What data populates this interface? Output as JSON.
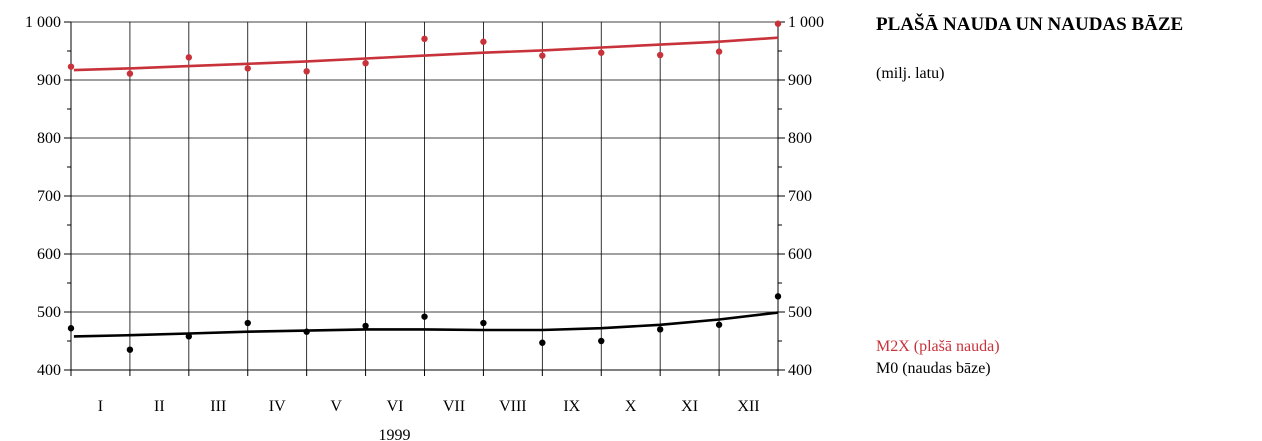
{
  "header": {
    "title": "PLAŠĀ NAUDA UN NAUDAS BĀZE",
    "unit": "(milj. latu)"
  },
  "legend": [
    {
      "label": "M2X (plašā nauda)",
      "color": "#c8323a"
    },
    {
      "label": "M0 (naudas bāze)",
      "color": "#000000"
    }
  ],
  "chart_data": {
    "type": "scatter",
    "title": "PLAŠĀ NAUDA UN NAUDAS BĀZE",
    "subtitle": "(milj. latu)",
    "xlabel": "1999",
    "ylabel": "",
    "categories": [
      "I",
      "II",
      "III",
      "IV",
      "V",
      "VI",
      "VII",
      "VIII",
      "IX",
      "X",
      "XI",
      "XII"
    ],
    "ylim": [
      400,
      1000
    ],
    "yticks": [
      400,
      500,
      600,
      700,
      800,
      900,
      1000
    ],
    "ytick_labels": [
      "400",
      "500",
      "600",
      "700",
      "800",
      "900",
      "1 000"
    ],
    "grid": true,
    "series": [
      {
        "name": "M2X (plašā nauda)",
        "color": "#c8323a",
        "points": [
          {
            "x": 0,
            "y": 923
          },
          {
            "x": 1,
            "y": 911
          },
          {
            "x": 2,
            "y": 939
          },
          {
            "x": 3,
            "y": 920
          },
          {
            "x": 4,
            "y": 915
          },
          {
            "x": 5,
            "y": 929
          },
          {
            "x": 6,
            "y": 971
          },
          {
            "x": 7,
            "y": 966
          },
          {
            "x": 8,
            "y": 942
          },
          {
            "x": 9,
            "y": 947
          },
          {
            "x": 10,
            "y": 943
          },
          {
            "x": 11,
            "y": 949
          },
          {
            "x": 12,
            "y": 997
          }
        ],
        "trend": [
          {
            "x": 0.05,
            "y": 917
          },
          {
            "x": 1,
            "y": 920
          },
          {
            "x": 2,
            "y": 924
          },
          {
            "x": 3,
            "y": 928
          },
          {
            "x": 4,
            "y": 932
          },
          {
            "x": 5,
            "y": 937
          },
          {
            "x": 6,
            "y": 942
          },
          {
            "x": 7,
            "y": 947
          },
          {
            "x": 8,
            "y": 951
          },
          {
            "x": 9,
            "y": 956
          },
          {
            "x": 10,
            "y": 961
          },
          {
            "x": 11,
            "y": 966
          },
          {
            "x": 12,
            "y": 973
          }
        ]
      },
      {
        "name": "M0 (naudas bāze)",
        "color": "#000000",
        "points": [
          {
            "x": 0,
            "y": 472
          },
          {
            "x": 1,
            "y": 435
          },
          {
            "x": 2,
            "y": 458
          },
          {
            "x": 3,
            "y": 481
          },
          {
            "x": 4,
            "y": 466
          },
          {
            "x": 5,
            "y": 476
          },
          {
            "x": 6,
            "y": 492
          },
          {
            "x": 7,
            "y": 481
          },
          {
            "x": 8,
            "y": 447
          },
          {
            "x": 9,
            "y": 450
          },
          {
            "x": 10,
            "y": 470
          },
          {
            "x": 11,
            "y": 478
          },
          {
            "x": 12,
            "y": 527
          }
        ],
        "trend": [
          {
            "x": 0.05,
            "y": 458
          },
          {
            "x": 1,
            "y": 460
          },
          {
            "x": 2,
            "y": 463
          },
          {
            "x": 3,
            "y": 466
          },
          {
            "x": 4,
            "y": 468
          },
          {
            "x": 5,
            "y": 470
          },
          {
            "x": 6,
            "y": 470
          },
          {
            "x": 7,
            "y": 469
          },
          {
            "x": 8,
            "y": 469
          },
          {
            "x": 9,
            "y": 472
          },
          {
            "x": 10,
            "y": 478
          },
          {
            "x": 11,
            "y": 487
          },
          {
            "x": 12,
            "y": 499
          }
        ]
      }
    ]
  }
}
